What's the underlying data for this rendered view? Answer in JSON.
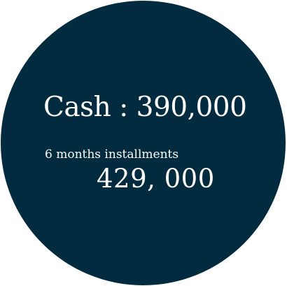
{
  "colors": {
    "background": "#ffffff",
    "circle": "#022b3f",
    "text": "#ffffff"
  },
  "pricing": {
    "cash": "Cash : 390,000",
    "installments_label": "6 months installments",
    "installments_price": "429, 000"
  }
}
